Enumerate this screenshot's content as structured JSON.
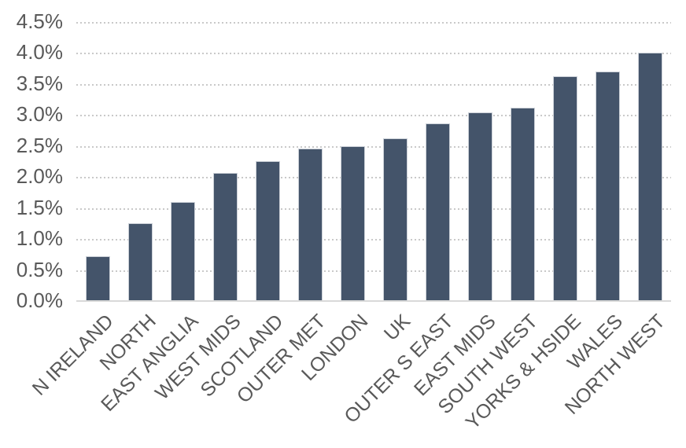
{
  "chart_data": {
    "type": "bar",
    "title": "",
    "xlabel": "",
    "ylabel": "",
    "categories": [
      "N IRELAND",
      "NORTH",
      "EAST ANGLIA",
      "WEST MIDS",
      "SCOTLAND",
      "OUTER MET",
      "LONDON",
      "UK",
      "OUTER S EAST",
      "EAST MIDS",
      "SOUTH WEST",
      "YORKS & HSIDE",
      "WALES",
      "NORTH WEST"
    ],
    "values": [
      0.71,
      1.24,
      1.58,
      2.06,
      2.24,
      2.45,
      2.48,
      2.61,
      2.85,
      3.03,
      3.11,
      3.61,
      3.69,
      3.99
    ],
    "value_unit": "%",
    "ylim": [
      0,
      4.5
    ],
    "y_tick_step": 0.5,
    "y_tick_labels": [
      "0.0%",
      "0.5%",
      "1.0%",
      "1.5%",
      "2.0%",
      "2.5%",
      "3.0%",
      "3.5%",
      "4.0%",
      "4.5%"
    ],
    "grid": "horizontal-dotted",
    "legend": "none",
    "colors": {
      "bar_fill": "#44546A",
      "bar_outline": "#ccd1d8",
      "gridline": "#c9c9c9",
      "axis_line": "#d9d9d9",
      "tick_label": "#595959"
    }
  }
}
